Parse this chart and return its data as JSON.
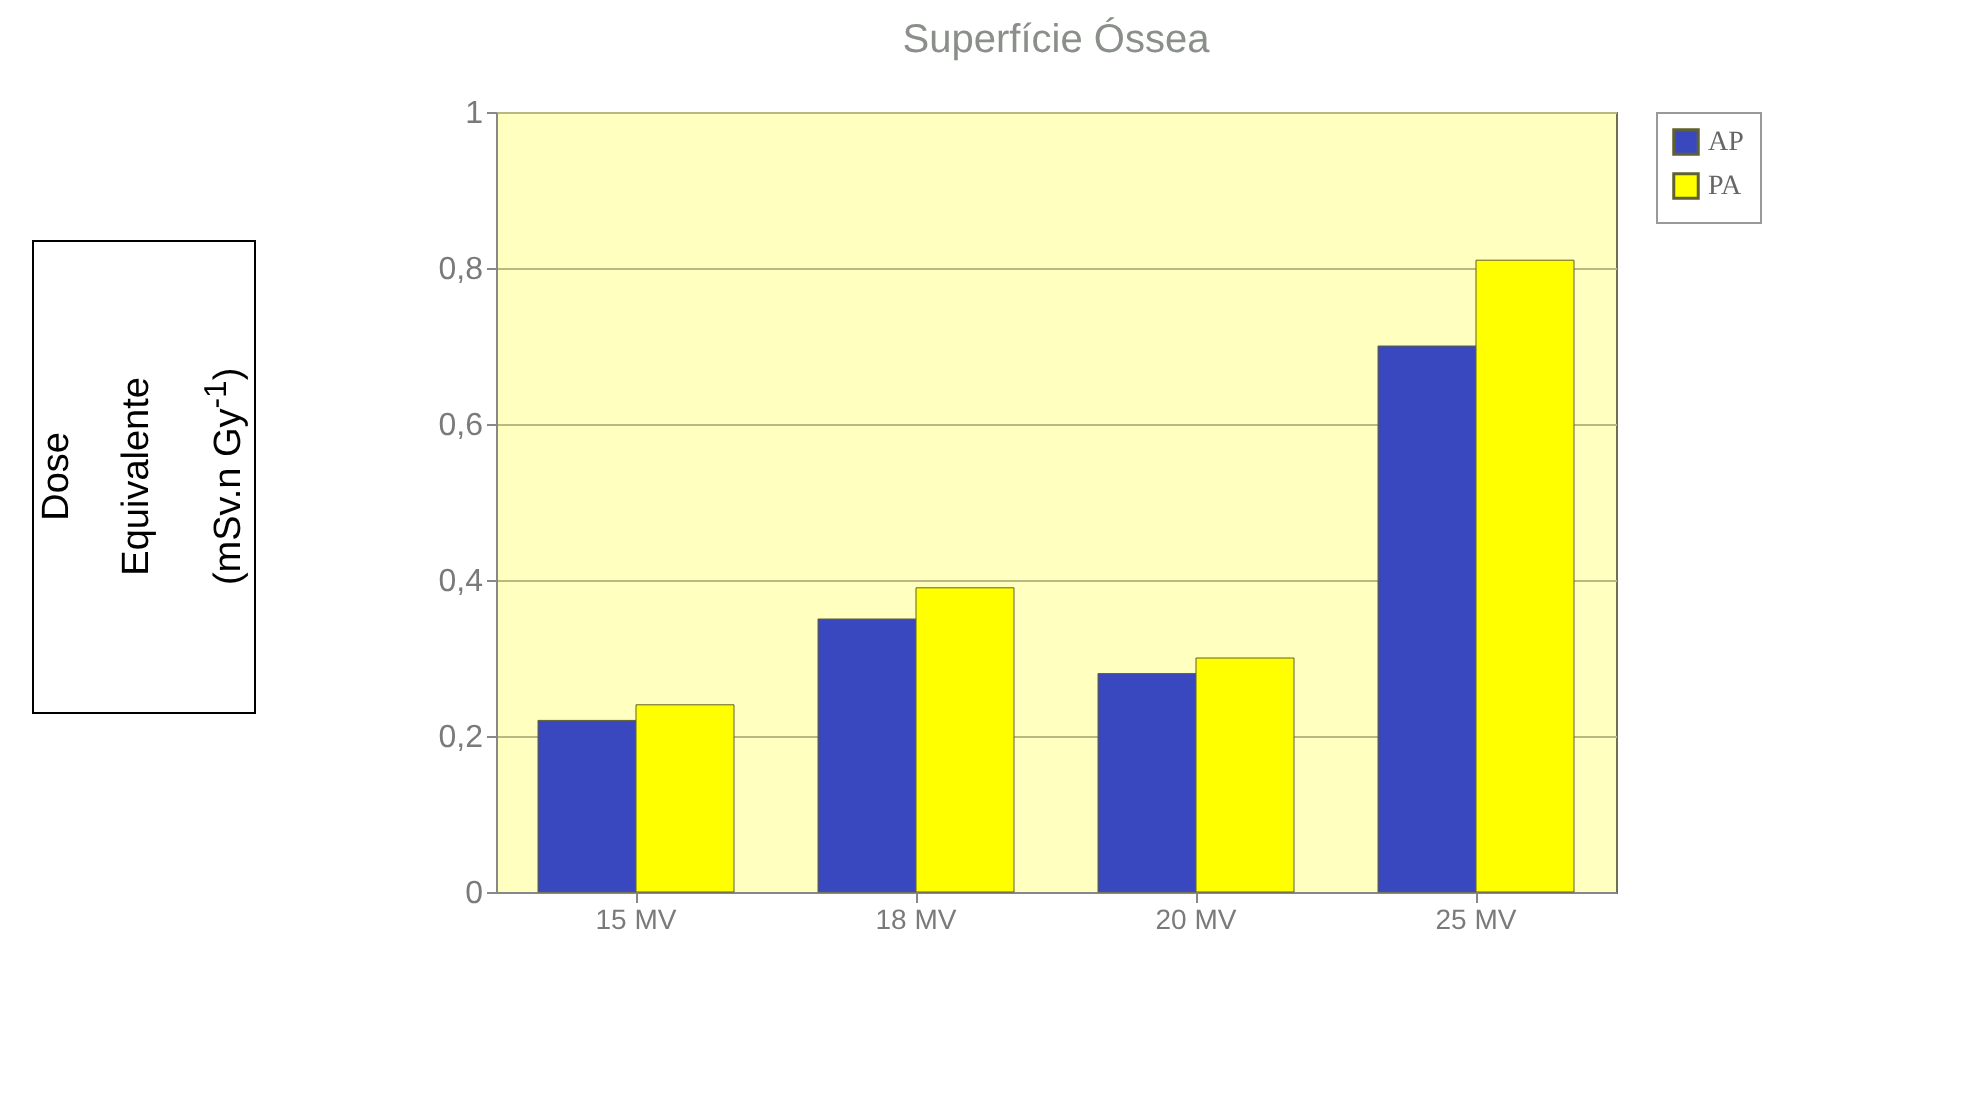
{
  "chart_data": {
    "type": "bar",
    "title": "Superfície Óssea",
    "ylabel": "Dose Equivalente (mSv.n Gy$^{-1}$)",
    "categories": [
      "15 MV",
      "18 MV",
      "20 MV",
      "25 MV"
    ],
    "series": [
      {
        "name": "AP",
        "color": "#3a48c0",
        "values": [
          0.22,
          0.35,
          0.28,
          0.7
        ]
      },
      {
        "name": "PA",
        "color": "#ffff00",
        "values": [
          0.24,
          0.39,
          0.3,
          0.81
        ]
      }
    ],
    "ylim": [
      0,
      1
    ],
    "yticks": [
      0,
      {
        "value": 0.2,
        "label": "0,2"
      },
      {
        "value": 0.4,
        "label": "0,4"
      },
      {
        "value": 0.6,
        "label": "0,6"
      },
      {
        "value": 0.8,
        "label": "0,8"
      },
      1
    ],
    "grid": "y",
    "legend": "top right"
  }
}
